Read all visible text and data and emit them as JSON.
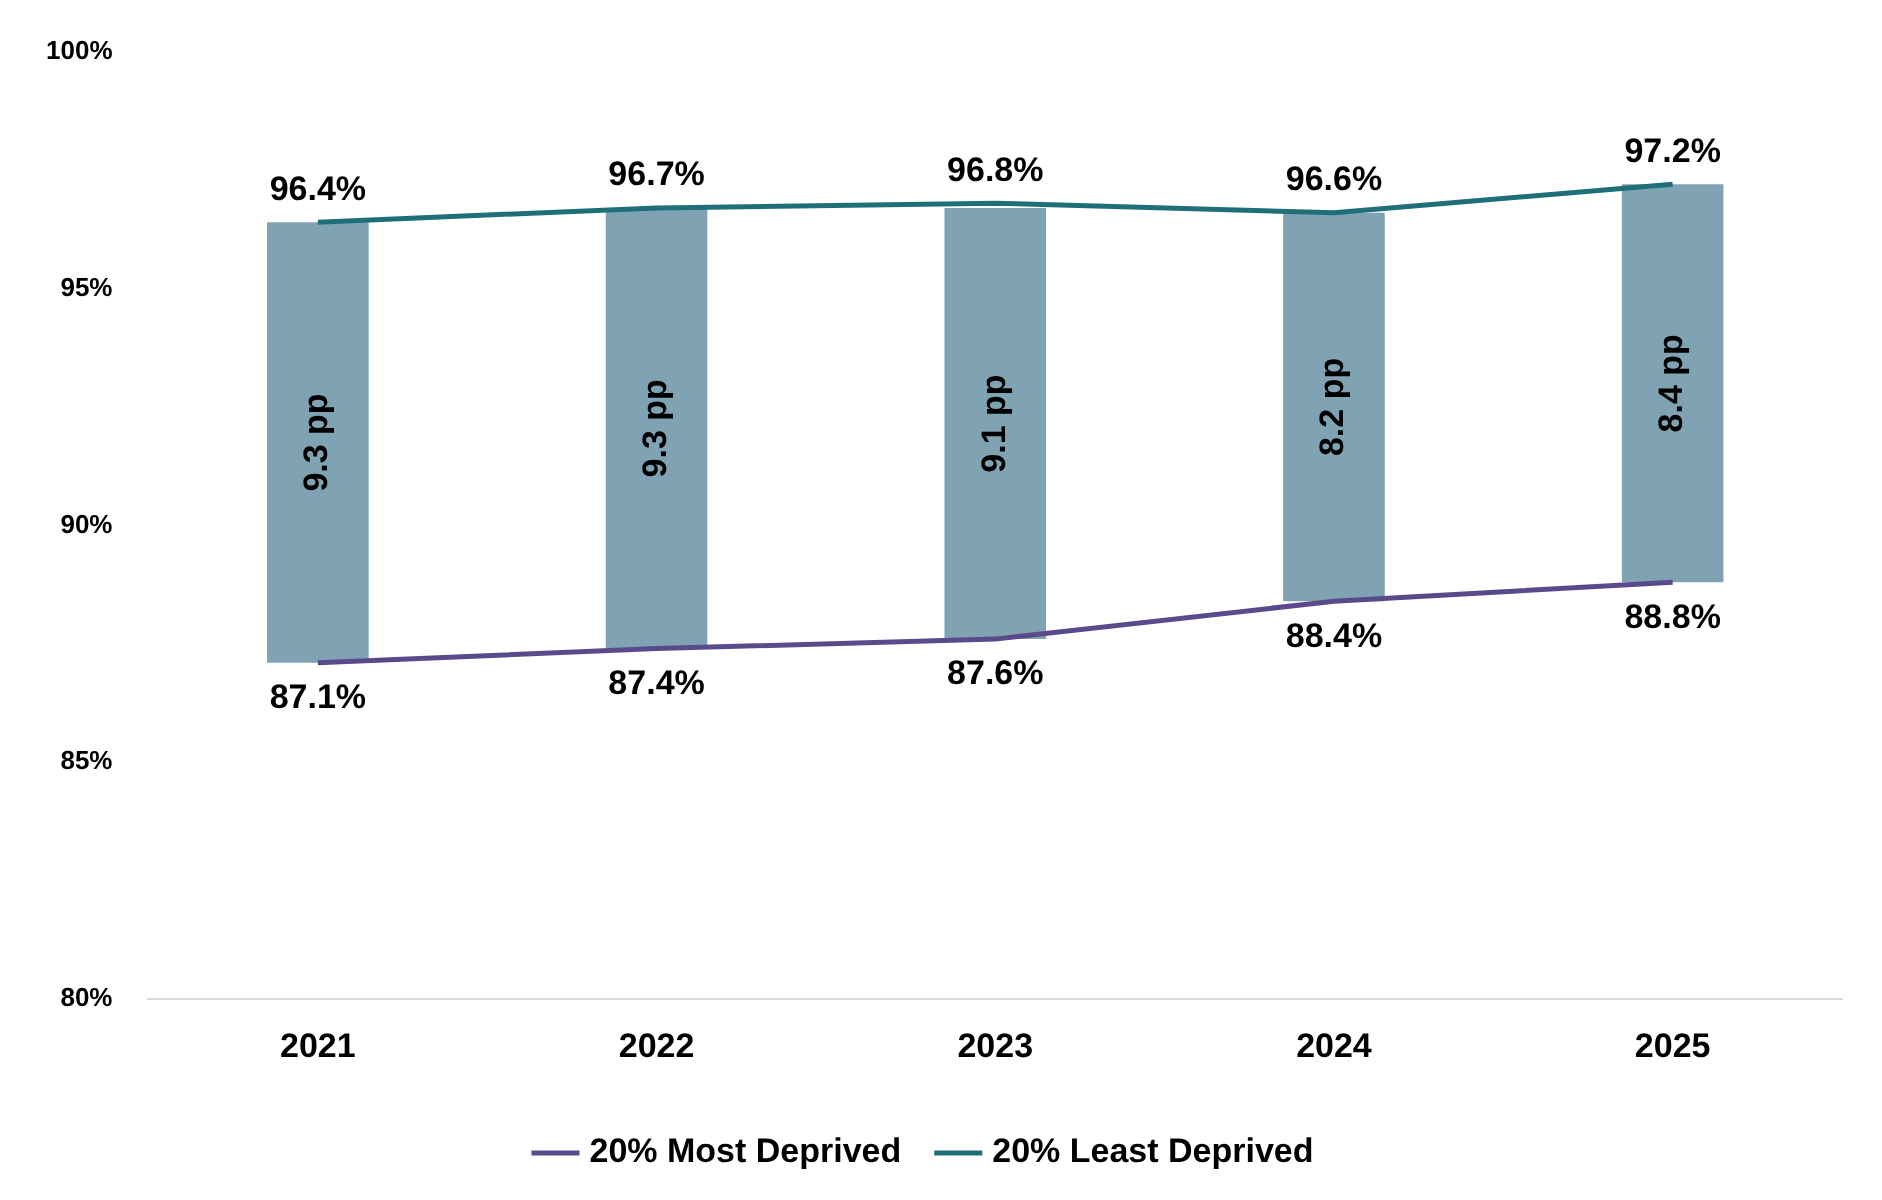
{
  "chart_data": {
    "type": "line",
    "categories": [
      "2021",
      "2022",
      "2023",
      "2024",
      "2025"
    ],
    "ylim": [
      80,
      100
    ],
    "yticks": [
      {
        "value": 80,
        "label": "80%"
      },
      {
        "value": 85,
        "label": "85%"
      },
      {
        "value": 90,
        "label": "90%"
      },
      {
        "value": 95,
        "label": "95%"
      },
      {
        "value": 100,
        "label": "100%"
      }
    ],
    "grid": false,
    "legend": "bottom",
    "marker": "none",
    "line_style": "solid",
    "series": [
      {
        "type": "bar",
        "color": "#7fa3b3",
        "base": [
          87.1,
          87.4,
          87.6,
          88.4,
          88.8
        ],
        "values": [
          9.3,
          9.3,
          9.1,
          8.2,
          8.4
        ],
        "value_labels": [
          "9.3 pp",
          "9.3 pp",
          "9.1 pp",
          "8.2 pp",
          "8.4 pp"
        ]
      },
      {
        "name": "20% Most Deprived",
        "color": "#5b4a8b",
        "values": [
          87.1,
          87.4,
          87.6,
          88.4,
          88.8
        ],
        "value_labels": [
          "87.1%",
          "87.4%",
          "87.6%",
          "88.4%",
          "88.8%"
        ]
      },
      {
        "name": "20% Least Deprived",
        "color": "#1f6f78",
        "values": [
          96.4,
          96.7,
          96.8,
          96.6,
          97.2
        ],
        "value_labels": [
          "96.4%",
          "96.7%",
          "96.8%",
          "96.6%",
          "97.2%"
        ]
      }
    ]
  }
}
